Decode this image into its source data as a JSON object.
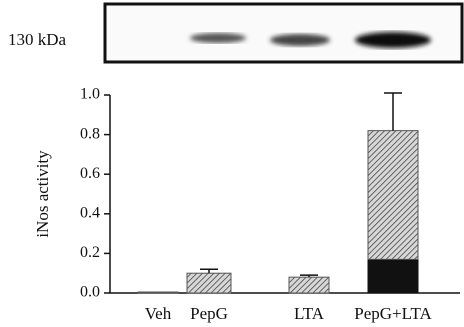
{
  "chart_data": {
    "type": "bar",
    "blot_label": "130 kDa",
    "y_label": "iNos activity",
    "categories": [
      "Veh",
      "PepG",
      "LTA",
      "PepG+LTA"
    ],
    "series": [
      {
        "color": "#111111",
        "values": [
          null,
          null,
          null,
          0.17
        ]
      },
      {
        "color": "#555555",
        "values": [
          0.005,
          0.1,
          0.08,
          0.65
        ],
        "errors": [
          null,
          0.02,
          0.01,
          0.19
        ]
      }
    ],
    "stacked": true,
    "ylim": [
      0,
      1.0
    ],
    "yticks": [
      {
        "value": 0,
        "label": "0.0"
      },
      {
        "value": 0.2,
        "label": "0.2"
      },
      {
        "value": 0.4,
        "label": "0.4"
      },
      {
        "value": 0.6,
        "label": "0.6"
      },
      {
        "value": 0.8,
        "label": "0.8"
      },
      {
        "value": 1.0,
        "label": "1.0"
      }
    ]
  }
}
